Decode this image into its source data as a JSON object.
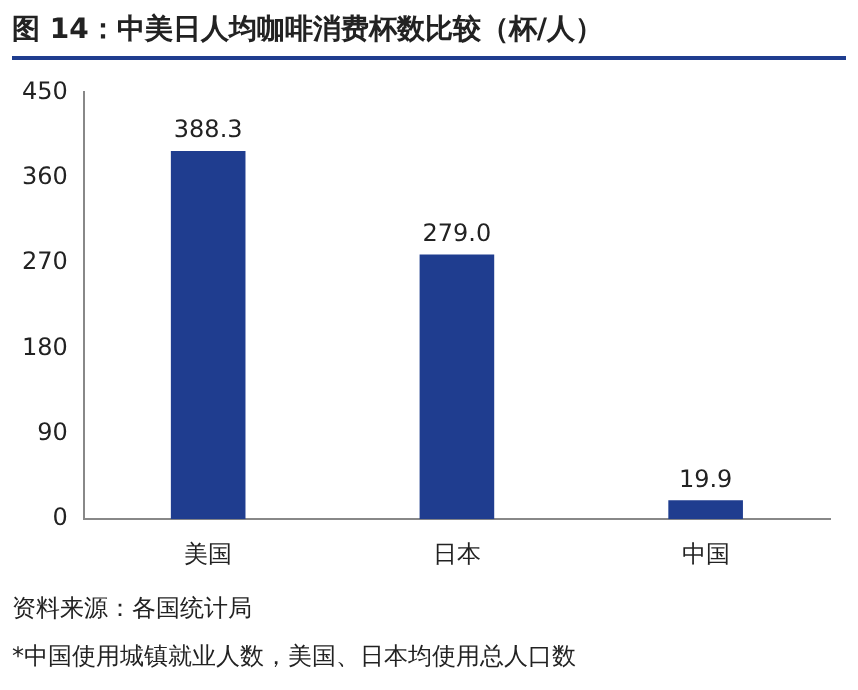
{
  "chart_data": {
    "type": "bar",
    "title": "图 14：中美日人均咖啡消费杯数比较（杯/人）",
    "categories": [
      "美国",
      "日本",
      "中国"
    ],
    "values": [
      388.3,
      279.0,
      19.9
    ],
    "value_labels": [
      "388.3",
      "279.0",
      "19.9"
    ],
    "color": "#1f3d8f",
    "ylim": [
      0,
      450
    ],
    "yticks": [
      0,
      90,
      180,
      270,
      360,
      450
    ],
    "grid": false,
    "annotations": [
      "资料来源：各国统计局",
      "*中国使用城镇就业人数，美国、日本均使用总人口数"
    ]
  }
}
